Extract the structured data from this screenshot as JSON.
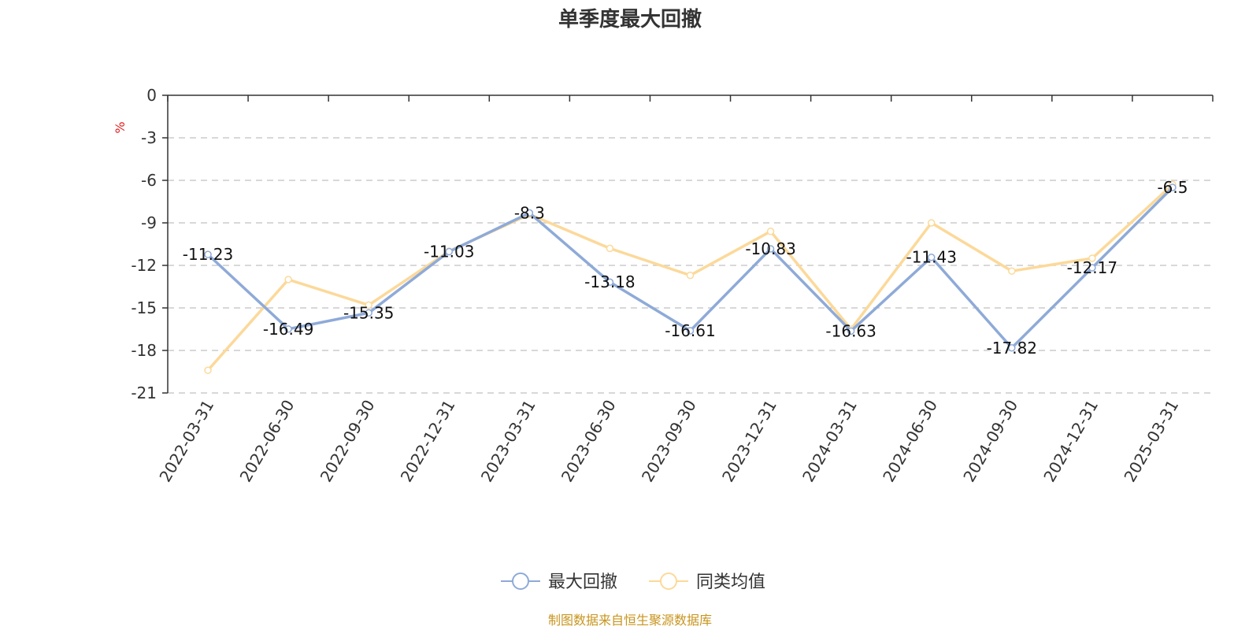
{
  "chart_data": {
    "type": "line",
    "title": "单季度最大回撤",
    "ylabel": "%",
    "ylim": [
      -21,
      0
    ],
    "yticks": [
      0,
      -3,
      -6,
      -9,
      -12,
      -15,
      -18,
      -21
    ],
    "grid": true,
    "legend_position": "bottom",
    "categories": [
      "2022-03-31",
      "2022-06-30",
      "2022-09-30",
      "2022-12-31",
      "2023-03-31",
      "2023-06-30",
      "2023-09-30",
      "2023-12-31",
      "2024-03-31",
      "2024-06-30",
      "2024-09-30",
      "2024-12-31",
      "2025-03-31"
    ],
    "series": [
      {
        "name": "最大回撤",
        "color": "#8eaad8",
        "labeled": true,
        "values": [
          -11.23,
          -16.49,
          -15.35,
          -11.03,
          -8.3,
          -13.18,
          -16.61,
          -10.83,
          -16.63,
          -11.43,
          -17.82,
          -12.17,
          -6.5
        ]
      },
      {
        "name": "同类均值",
        "color": "#fcd99a",
        "labeled": false,
        "values": [
          -19.4,
          -13.0,
          -14.8,
          -11.0,
          -8.4,
          -10.8,
          -12.7,
          -9.6,
          -16.5,
          -9.0,
          -12.4,
          -11.5,
          -6.3
        ]
      }
    ],
    "source": "制图数据来自恒生聚源数据库"
  }
}
